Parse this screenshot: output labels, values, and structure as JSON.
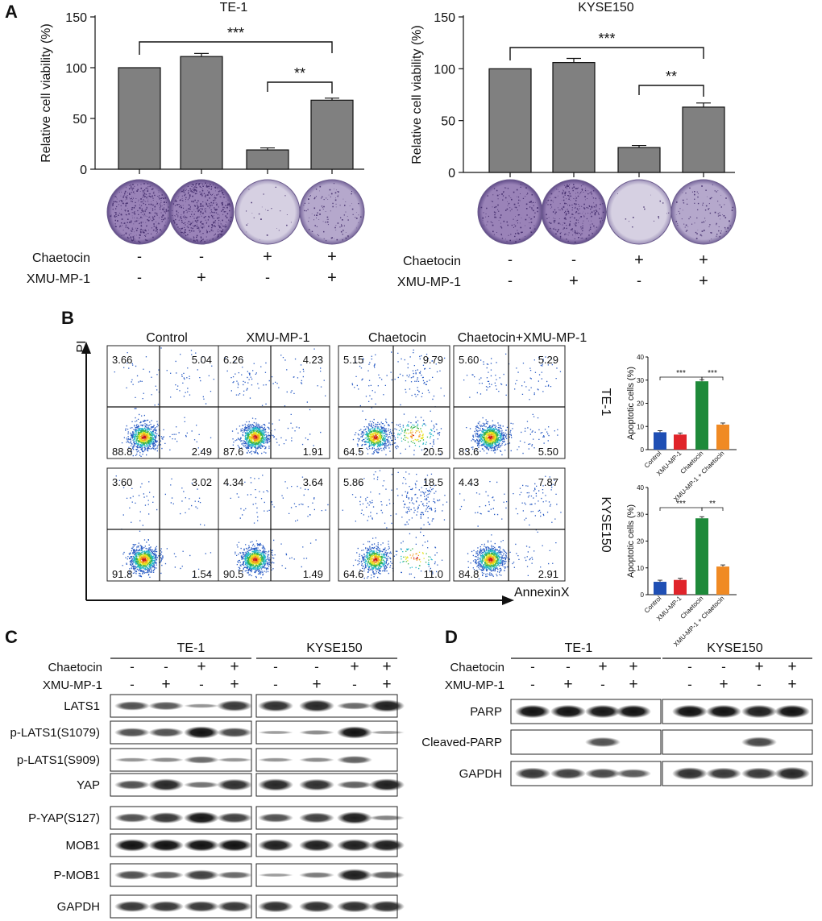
{
  "panels": {
    "A": {
      "letter": "A",
      "charts": [
        {
          "title": "TE-1",
          "ylabel": "Relative cell  viability (%)",
          "ylim": [
            0,
            150
          ],
          "yticks": [
            "0",
            "50",
            "100",
            "150"
          ],
          "values": [
            100,
            111,
            19,
            68
          ],
          "errors": [
            0,
            3,
            2,
            2
          ],
          "sig": [
            {
              "from": 0,
              "to": 3,
              "label": "***"
            },
            {
              "from": 2,
              "to": 3,
              "label": "**"
            }
          ],
          "treatment_rows": [
            {
              "label": "Chaetocin",
              "signs": [
                "-",
                "-",
                "+",
                "+"
              ]
            },
            {
              "label": "XMU-MP-1",
              "signs": [
                "-",
                "+",
                "-",
                "+"
              ]
            }
          ]
        },
        {
          "title": "KYSE150",
          "ylabel": "Relative cell viability (%)",
          "ylim": [
            0,
            150
          ],
          "yticks": [
            "0",
            "50",
            "100",
            "150"
          ],
          "values": [
            100,
            106,
            24,
            63
          ],
          "errors": [
            0,
            4,
            2,
            4
          ],
          "sig": [
            {
              "from": 0,
              "to": 3,
              "label": "***"
            },
            {
              "from": 2,
              "to": 3,
              "label": "**"
            }
          ],
          "treatment_rows": [
            {
              "label": "Chaetocin",
              "signs": [
                "-",
                "-",
                "+",
                "+"
              ]
            },
            {
              "label": "XMU-MP-1",
              "signs": [
                "-",
                "+",
                "-",
                "+"
              ]
            }
          ]
        }
      ]
    },
    "B": {
      "letter": "B",
      "column_titles": [
        "Control",
        "XMU-MP-1",
        "Chaetocin",
        "Chaetocin+XMU-MP-1"
      ],
      "y_axis_label": "PI",
      "x_axis_label": "AnnexinX",
      "rows": [
        {
          "cell_line": "TE-1",
          "quadrants": [
            [
              "3.66",
              "5.04",
              "88.8",
              "2.49"
            ],
            [
              "6.26",
              "4.23",
              "87.6",
              "1.91"
            ],
            [
              "5.15",
              "9.79",
              "64.5",
              "20.5"
            ],
            [
              "5.60",
              "5.29",
              "83.6",
              "5.50"
            ]
          ]
        },
        {
          "cell_line": "KYSE150",
          "quadrants": [
            [
              "3.60",
              "3.02",
              "91.8",
              "1.54"
            ],
            [
              "4.34",
              "3.64",
              "90.5",
              "1.49"
            ],
            [
              "5.86",
              "18.5",
              "64.6",
              "11.0"
            ],
            [
              "4.43",
              "7.87",
              "84.8",
              "2.91"
            ]
          ]
        }
      ],
      "apoptosis_charts": [
        {
          "ylabel": "Apoptotic cells (%)",
          "ylim": [
            0,
            40
          ],
          "yticks": [
            "0",
            "10",
            "20",
            "30",
            "40"
          ],
          "categories": [
            "Control",
            "XMU-MP-1",
            "Chaetocin",
            "XMU-MP-1 + Chaetocin"
          ],
          "values": [
            7.5,
            6.5,
            29.5,
            10.8
          ],
          "colors": [
            "#1f4fb4",
            "#e0242a",
            "#1e8a3a",
            "#f08a24"
          ],
          "sig": [
            {
              "from": 0,
              "to": 2,
              "label": "***"
            },
            {
              "from": 2,
              "to": 3,
              "label": "***"
            }
          ]
        },
        {
          "ylabel": "Apoptotic cells (%)",
          "ylim": [
            0,
            40
          ],
          "yticks": [
            "0",
            "10",
            "20",
            "30",
            "40"
          ],
          "categories": [
            "Control",
            "XMU-MP-1",
            "Chaetocin",
            "XMU-MP-1 + Chaetocin"
          ],
          "values": [
            4.8,
            5.5,
            28.5,
            10.5
          ],
          "colors": [
            "#1f4fb4",
            "#e0242a",
            "#1e8a3a",
            "#f08a24"
          ],
          "sig": [
            {
              "from": 0,
              "to": 2,
              "label": "***"
            },
            {
              "from": 2,
              "to": 3,
              "label": "**"
            }
          ]
        }
      ]
    },
    "C": {
      "letter": "C",
      "groups": [
        "TE-1",
        "KYSE150"
      ],
      "treatment_rows": [
        {
          "label": "Chaetocin",
          "signs": [
            "-",
            "-",
            "+",
            "+"
          ]
        },
        {
          "label": "XMU-MP-1",
          "signs": [
            "-",
            "+",
            "-",
            "+"
          ]
        }
      ],
      "blots": [
        "LATS1",
        "p-LATS1(S1079)",
        "p-LATS1(S909)",
        "YAP",
        "P-YAP(S127)",
        "MOB1",
        "P-MOB1",
        "GAPDH"
      ]
    },
    "D": {
      "letter": "D",
      "groups": [
        "TE-1",
        "KYSE150"
      ],
      "treatment_rows": [
        {
          "label": "Chaetocin",
          "signs": [
            "-",
            "-",
            "+",
            "+"
          ]
        },
        {
          "label": "XMU-MP-1",
          "signs": [
            "-",
            "+",
            "-",
            "+"
          ]
        }
      ],
      "blots": [
        "PARP",
        "Cleaved-PARP",
        "GAPDH"
      ]
    }
  }
}
